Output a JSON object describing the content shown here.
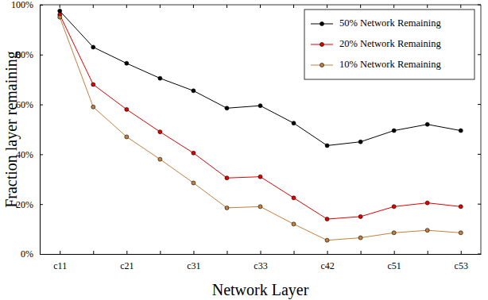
{
  "chart_data": {
    "type": "line",
    "x_label": "Network Layer",
    "y_label": "Fraction layer remaining",
    "categories": [
      "c11",
      null,
      "c21",
      null,
      "c31",
      null,
      "c33",
      null,
      "c42",
      null,
      "c51",
      null,
      "c53"
    ],
    "ylim": [
      0,
      100
    ],
    "yticks": [
      {
        "value": 0,
        "label": "0%"
      },
      {
        "value": 20,
        "label": "20%"
      },
      {
        "value": 40,
        "label": "40%"
      },
      {
        "value": 60,
        "label": "60%"
      },
      {
        "value": 80,
        "label": "80%"
      },
      {
        "value": 100,
        "label": "100%"
      }
    ],
    "grid": false,
    "legend": "upper right",
    "marker": "circle",
    "series": [
      {
        "name": "50% Network Remaining",
        "color": "#000000",
        "values": [
          97.5,
          83,
          76.5,
          70.5,
          65.5,
          58.5,
          59.5,
          52.5,
          43.5,
          45,
          49.5,
          52,
          49.5
        ]
      },
      {
        "name": "20% Network Remaining",
        "color": "#e00000",
        "values": [
          96,
          68,
          58,
          49,
          40.5,
          30.5,
          31,
          22.5,
          14,
          15,
          19,
          20.5,
          19
        ]
      },
      {
        "name": "10% Network Remaining",
        "color": "#c08040",
        "values": [
          95,
          59,
          47,
          38,
          28.5,
          18.5,
          19,
          12,
          5.5,
          6.5,
          8.5,
          9.5,
          8.5
        ]
      }
    ]
  }
}
